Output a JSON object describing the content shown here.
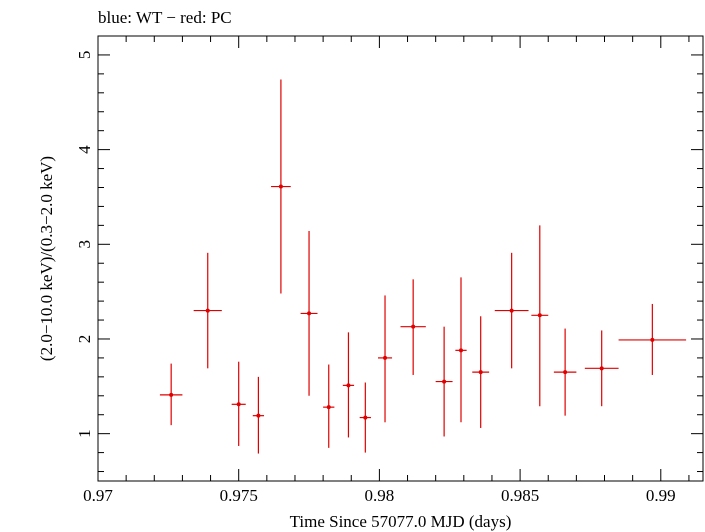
{
  "chart_data": {
    "type": "scatter",
    "title": "blue: WT − red: PC",
    "xlabel": "Time Since 57077.0 MJD (days)",
    "ylabel": "(2.0−10.0 keV)/(0.3−2.0 keV)",
    "xlim": [
      0.97,
      0.9915
    ],
    "ylim": [
      0.5,
      5.2
    ],
    "x_ticks": [
      0.97,
      0.975,
      0.98,
      0.985,
      0.99
    ],
    "x_tick_labels": [
      "0.97",
      "0.975",
      "0.98",
      "0.985",
      "0.99"
    ],
    "y_ticks": [
      1,
      2,
      3,
      4,
      5
    ],
    "y_tick_labels": [
      "1",
      "2",
      "3",
      "4",
      "5"
    ],
    "grid": false,
    "series": [
      {
        "name": "PC",
        "color": "#e00000",
        "points": [
          {
            "x": 0.9726,
            "y": 1.41,
            "xerr": 0.0004,
            "ylo": 1.09,
            "yhi": 1.74
          },
          {
            "x": 0.9739,
            "y": 2.3,
            "xerr": 0.0005,
            "ylo": 1.69,
            "yhi": 2.91
          },
          {
            "x": 0.975,
            "y": 1.31,
            "xerr": 0.00025,
            "ylo": 0.87,
            "yhi": 1.76
          },
          {
            "x": 0.9757,
            "y": 1.19,
            "xerr": 0.0002,
            "ylo": 0.79,
            "yhi": 1.6
          },
          {
            "x": 0.9765,
            "y": 3.61,
            "xerr": 0.00035,
            "ylo": 2.48,
            "yhi": 4.74
          },
          {
            "x": 0.9775,
            "y": 2.27,
            "xerr": 0.0003,
            "ylo": 1.4,
            "yhi": 3.14
          },
          {
            "x": 0.9782,
            "y": 1.28,
            "xerr": 0.0002,
            "ylo": 0.85,
            "yhi": 1.73
          },
          {
            "x": 0.9789,
            "y": 1.51,
            "xerr": 0.0002,
            "ylo": 0.96,
            "yhi": 2.07
          },
          {
            "x": 0.9795,
            "y": 1.17,
            "xerr": 0.0002,
            "ylo": 0.8,
            "yhi": 1.54
          },
          {
            "x": 0.9802,
            "y": 1.8,
            "xerr": 0.00025,
            "ylo": 1.12,
            "yhi": 2.46
          },
          {
            "x": 0.9812,
            "y": 2.13,
            "xerr": 0.00045,
            "ylo": 1.62,
            "yhi": 2.63
          },
          {
            "x": 0.9823,
            "y": 1.55,
            "xerr": 0.0003,
            "ylo": 0.97,
            "yhi": 2.13
          },
          {
            "x": 0.9829,
            "y": 1.88,
            "xerr": 0.0002,
            "ylo": 1.12,
            "yhi": 2.65
          },
          {
            "x": 0.9836,
            "y": 1.65,
            "xerr": 0.0003,
            "ylo": 1.06,
            "yhi": 2.24
          },
          {
            "x": 0.9847,
            "y": 2.3,
            "xerr": 0.0006,
            "ylo": 1.69,
            "yhi": 2.91
          },
          {
            "x": 0.9857,
            "y": 2.25,
            "xerr": 0.0003,
            "ylo": 1.29,
            "yhi": 3.2
          },
          {
            "x": 0.9866,
            "y": 1.65,
            "xerr": 0.0004,
            "ylo": 1.19,
            "yhi": 2.11
          },
          {
            "x": 0.9879,
            "y": 1.69,
            "xerr": 0.0006,
            "ylo": 1.29,
            "yhi": 2.09
          },
          {
            "x": 0.9897,
            "y": 1.99,
            "xerr": 0.0012,
            "ylo": 1.62,
            "yhi": 2.37
          }
        ]
      }
    ]
  }
}
